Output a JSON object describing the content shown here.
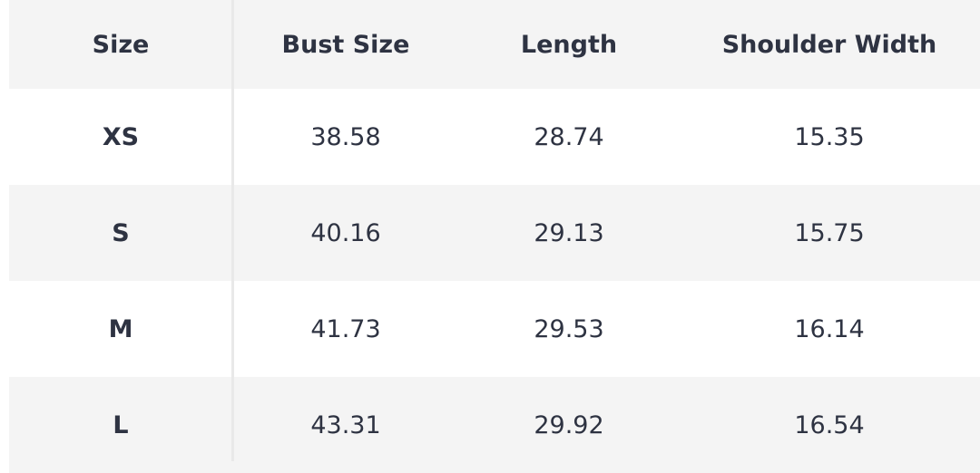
{
  "table": {
    "headers": [
      "Size",
      "Bust Size",
      "Length",
      "Shoulder Width"
    ],
    "rows": [
      [
        "XS",
        "38.58",
        "28.74",
        "15.35"
      ],
      [
        "S",
        "40.16",
        "29.13",
        "15.75"
      ],
      [
        "M",
        "41.73",
        "29.53",
        "16.14"
      ],
      [
        "L",
        "43.31",
        "29.92",
        "16.54"
      ]
    ]
  },
  "colors": {
    "header_bg": "#f4f4f4",
    "stripe_bg": "#f4f4f4",
    "text": "#2e3342",
    "divider": "#e9e9e9"
  }
}
